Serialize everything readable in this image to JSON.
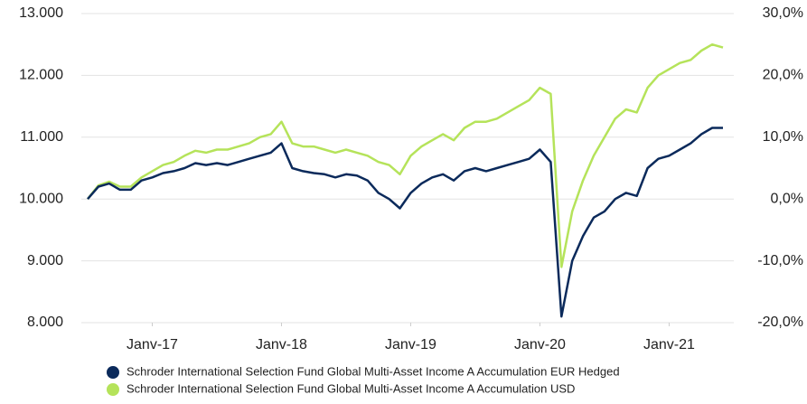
{
  "chart_data": {
    "type": "line",
    "x": [
      "2016-07",
      "2016-08",
      "2016-09",
      "2016-10",
      "2016-11",
      "2016-12",
      "2017-01",
      "2017-02",
      "2017-03",
      "2017-04",
      "2017-05",
      "2017-06",
      "2017-07",
      "2017-08",
      "2017-09",
      "2017-10",
      "2017-11",
      "2017-12",
      "2018-01",
      "2018-02",
      "2018-03",
      "2018-04",
      "2018-05",
      "2018-06",
      "2018-07",
      "2018-08",
      "2018-09",
      "2018-10",
      "2018-11",
      "2018-12",
      "2019-01",
      "2019-02",
      "2019-03",
      "2019-04",
      "2019-05",
      "2019-06",
      "2019-07",
      "2019-08",
      "2019-09",
      "2019-10",
      "2019-11",
      "2019-12",
      "2020-01",
      "2020-02",
      "2020-03",
      "2020-04",
      "2020-05",
      "2020-06",
      "2020-07",
      "2020-08",
      "2020-09",
      "2020-10",
      "2020-11",
      "2020-12",
      "2021-01",
      "2021-02",
      "2021-03",
      "2021-04",
      "2021-05",
      "2021-06"
    ],
    "xlim": [
      "2016-07",
      "2021-06"
    ],
    "xticks": [
      {
        "value": "2017-01",
        "label": "Janv-17"
      },
      {
        "value": "2018-01",
        "label": "Janv-18"
      },
      {
        "value": "2019-01",
        "label": "Janv-19"
      },
      {
        "value": "2020-01",
        "label": "Janv-20"
      },
      {
        "value": "2021-01",
        "label": "Janv-21"
      }
    ],
    "ylim": [
      8000,
      13000
    ],
    "yticks": [
      {
        "value": 8000,
        "label": "8.000"
      },
      {
        "value": 9000,
        "label": "9.000"
      },
      {
        "value": 10000,
        "label": "10.000"
      },
      {
        "value": 11000,
        "label": "11.000"
      },
      {
        "value": 12000,
        "label": "12.000"
      },
      {
        "value": 13000,
        "label": "13.000"
      }
    ],
    "y2lim": [
      -20,
      30
    ],
    "y2ticks": [
      {
        "value": -20,
        "label": "-20,0%"
      },
      {
        "value": -10,
        "label": "-10,0%"
      },
      {
        "value": 0,
        "label": "0,0%"
      },
      {
        "value": 10,
        "label": "10,0%"
      },
      {
        "value": 20,
        "label": "20,0%"
      },
      {
        "value": 30,
        "label": "30,0%"
      }
    ],
    "grid": true,
    "series": [
      {
        "name": "Schroder International Selection Fund Global Multi-Asset Income A Accumulation EUR Hedged",
        "color": "#0b2a5b",
        "values": [
          10000,
          10200,
          10250,
          10150,
          10150,
          10300,
          10350,
          10420,
          10450,
          10500,
          10580,
          10550,
          10580,
          10550,
          10600,
          10650,
          10700,
          10750,
          10900,
          10500,
          10450,
          10420,
          10400,
          10350,
          10400,
          10380,
          10300,
          10100,
          10000,
          9850,
          10100,
          10250,
          10350,
          10400,
          10300,
          10450,
          10500,
          10450,
          10500,
          10550,
          10600,
          10650,
          10800,
          10600,
          8100,
          9000,
          9400,
          9700,
          9800,
          10000,
          10100,
          10050,
          10500,
          10650,
          10700,
          10800,
          10900,
          11050,
          11150,
          11150
        ]
      },
      {
        "name": "Schroder International Selection Fund Global Multi-Asset Income A Accumulation USD",
        "color": "#b5e35a",
        "values": [
          10000,
          10220,
          10280,
          10200,
          10200,
          10350,
          10450,
          10550,
          10600,
          10700,
          10780,
          10750,
          10800,
          10800,
          10850,
          10900,
          11000,
          11050,
          11250,
          10900,
          10850,
          10850,
          10800,
          10750,
          10800,
          10750,
          10700,
          10600,
          10550,
          10400,
          10700,
          10850,
          10950,
          11050,
          10950,
          11150,
          11250,
          11250,
          11300,
          11400,
          11500,
          11600,
          11800,
          11700,
          8900,
          9800,
          10300,
          10700,
          11000,
          11300,
          11450,
          11400,
          11800,
          12000,
          12100,
          12200,
          12250,
          12400,
          12500,
          12450
        ]
      }
    ]
  }
}
